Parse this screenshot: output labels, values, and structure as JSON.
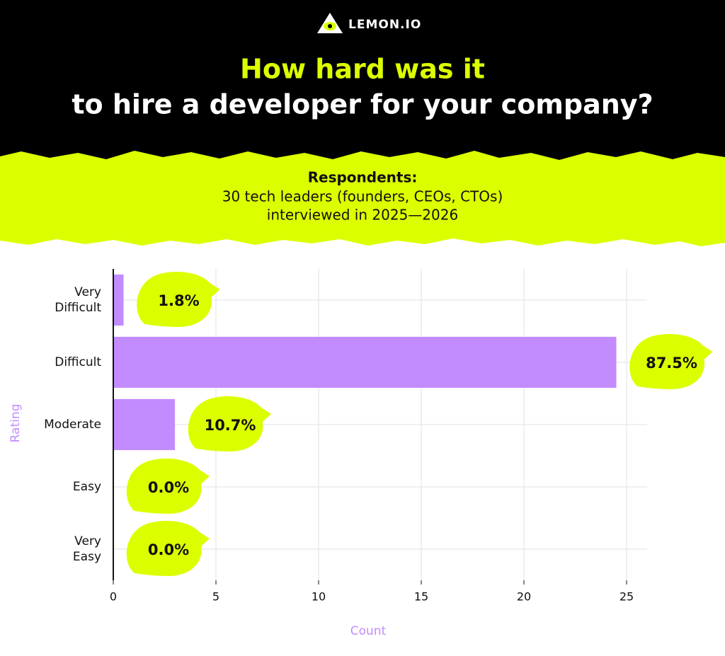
{
  "brand": "LEMON.IO",
  "chart_data": {
    "type": "hbar",
    "title": "How hard was it",
    "subtitle": "to hire a developer for your company?",
    "note_heading": "Respondents:",
    "note_lines": [
      "30 tech leaders (founders, CEOs, CTOs)",
      "interviewed in 2025—2026"
    ],
    "x_label": "Count",
    "y_label": "Rating",
    "categories": [
      "Very\nDifficult",
      "Difficult",
      "Moderate",
      "Easy",
      "Very\nEasy"
    ],
    "values": [
      0.5,
      24.5,
      3,
      0,
      0
    ],
    "shares": [
      "1.8%",
      "87.5%",
      "10.7%",
      "0.0%",
      "0.0%"
    ],
    "color": "#c28cff",
    "label_color": "#dcff00",
    "xlim": [
      0,
      26
    ],
    "xticks": [
      0,
      5,
      10,
      15,
      20,
      25
    ],
    "grid": true
  }
}
